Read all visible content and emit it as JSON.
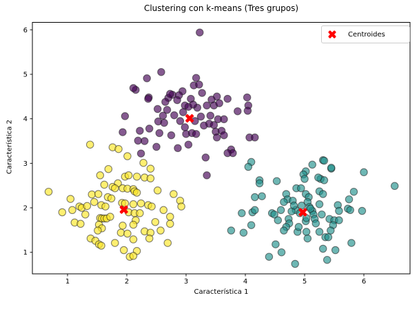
{
  "title": "Clustering con k-means (Tres grupos)",
  "x_axis": {
    "label": "Característica 1",
    "ticks": [
      1,
      2,
      3,
      4,
      5,
      6
    ]
  },
  "y_axis": {
    "label": "Característica 2",
    "ticks": [
      1,
      2,
      3,
      4,
      5,
      6
    ]
  },
  "legend": {
    "label": "Centroides",
    "marker": "X-marker-icon",
    "marker_color": "#ff0000"
  },
  "colors": {
    "cluster_yellow": "#fde725",
    "cluster_purple": "#440154",
    "cluster_teal": "#21918c",
    "centroid": "#ff0000",
    "edge": "#1a1a1a",
    "frame": "#000000"
  },
  "chart_data": {
    "type": "scatter",
    "title": "Clustering con k-means (Tres grupos)",
    "xlabel": "Característica 1",
    "ylabel": "Característica 2",
    "xlim": [
      0.41,
      6.78
    ],
    "ylim": [
      0.51,
      6.16
    ],
    "grid": false,
    "legend_position": "upper right",
    "marker_alpha": 0.65,
    "series": [
      {
        "name": "cluster-yellow",
        "color": "#fde725",
        "marker": "o",
        "points": [
          [
            1.38,
            3.42
          ],
          [
            1.76,
            3.36
          ],
          [
            1.86,
            3.32
          ],
          [
            2.01,
            3.16
          ],
          [
            2.28,
            3.01
          ],
          [
            1.69,
            2.87
          ],
          [
            2.4,
            2.88
          ],
          [
            1.55,
            2.73
          ],
          [
            1.97,
            2.7
          ],
          [
            2.03,
            2.73
          ],
          [
            2.17,
            2.7
          ],
          [
            2.3,
            2.68
          ],
          [
            2.4,
            2.66
          ],
          [
            1.85,
            2.55
          ],
          [
            1.62,
            2.52
          ],
          [
            1.76,
            2.47
          ],
          [
            1.8,
            2.44
          ],
          [
            1.93,
            2.44
          ],
          [
            2.01,
            2.43
          ],
          [
            2.11,
            2.42
          ],
          [
            2.13,
            2.37
          ],
          [
            2.17,
            2.34
          ],
          [
            2.52,
            2.39
          ],
          [
            2.79,
            2.31
          ],
          [
            0.68,
            2.36
          ],
          [
            1.41,
            2.3
          ],
          [
            1.52,
            2.31
          ],
          [
            1.68,
            2.24
          ],
          [
            1.74,
            2.21
          ],
          [
            1.05,
            2.2
          ],
          [
            1.45,
            2.13
          ],
          [
            1.2,
            2.03
          ],
          [
            1.24,
            2.0
          ],
          [
            1.33,
            2.04
          ],
          [
            0.91,
            1.9
          ],
          [
            1.08,
            1.95
          ],
          [
            1.57,
            2.06
          ],
          [
            1.64,
            2.03
          ],
          [
            1.92,
            2.11
          ],
          [
            1.97,
            2.1
          ],
          [
            2.11,
            2.08
          ],
          [
            2.24,
            2.1
          ],
          [
            2.36,
            2.06
          ],
          [
            2.42,
            2.03
          ],
          [
            2.9,
            2.16
          ],
          [
            2.92,
            2.03
          ],
          [
            2.62,
            1.95
          ],
          [
            1.55,
            1.77
          ],
          [
            1.58,
            1.76
          ],
          [
            1.62,
            1.76
          ],
          [
            1.66,
            1.76
          ],
          [
            1.72,
            1.8
          ],
          [
            2.03,
            1.9
          ],
          [
            2.13,
            1.88
          ],
          [
            2.22,
            1.88
          ],
          [
            1.3,
            1.85
          ],
          [
            1.12,
            1.67
          ],
          [
            1.22,
            1.64
          ],
          [
            1.53,
            1.62
          ],
          [
            1.58,
            1.54
          ],
          [
            1.51,
            1.49
          ],
          [
            2.15,
            1.72
          ],
          [
            2.11,
            1.62
          ],
          [
            2.73,
            1.8
          ],
          [
            2.73,
            1.64
          ],
          [
            2.48,
            1.68
          ],
          [
            1.93,
            1.6
          ],
          [
            1.39,
            1.31
          ],
          [
            1.47,
            1.26
          ],
          [
            1.53,
            1.18
          ],
          [
            1.57,
            1.15
          ],
          [
            1.8,
            1.21
          ],
          [
            1.9,
            1.44
          ],
          [
            2.01,
            1.42
          ],
          [
            2.11,
            1.29
          ],
          [
            2.3,
            1.47
          ],
          [
            2.4,
            1.44
          ],
          [
            2.38,
            1.31
          ],
          [
            2.57,
            1.49
          ],
          [
            2.69,
            1.21
          ],
          [
            1.95,
            1.05
          ],
          [
            2.17,
            1.03
          ],
          [
            2.05,
            0.9
          ],
          [
            2.11,
            0.92
          ]
        ]
      },
      {
        "name": "cluster-purple",
        "color": "#440154",
        "marker": "o",
        "points": [
          [
            3.23,
            5.94
          ],
          [
            2.58,
            5.05
          ],
          [
            2.34,
            4.91
          ],
          [
            3.17,
            4.92
          ],
          [
            2.15,
            4.65
          ],
          [
            2.11,
            4.69
          ],
          [
            3.13,
            4.75
          ],
          [
            3.22,
            4.77
          ],
          [
            2.94,
            4.62
          ],
          [
            2.77,
            4.54
          ],
          [
            2.37,
            4.48
          ],
          [
            2.7,
            4.47
          ],
          [
            2.36,
            4.45
          ],
          [
            2.73,
            4.56
          ],
          [
            2.65,
            4.38
          ],
          [
            2.88,
            4.53
          ],
          [
            2.98,
            4.3
          ],
          [
            3.04,
            4.27
          ],
          [
            3.19,
            4.25
          ],
          [
            3.27,
            4.58
          ],
          [
            3.08,
            4.45
          ],
          [
            2.85,
            4.42
          ],
          [
            3.12,
            4.32
          ],
          [
            2.52,
            4.22
          ],
          [
            2.68,
            4.2
          ],
          [
            2.61,
            4.07
          ],
          [
            2.53,
            3.94
          ],
          [
            2.63,
            3.91
          ],
          [
            1.97,
            4.06
          ],
          [
            1.93,
            3.7
          ],
          [
            2.22,
            3.73
          ],
          [
            2.38,
            3.78
          ],
          [
            2.55,
            3.68
          ],
          [
            2.75,
            3.63
          ],
          [
            2.98,
            3.81
          ],
          [
            3.0,
            3.66
          ],
          [
            3.1,
            3.68
          ],
          [
            3.17,
            3.66
          ],
          [
            2.3,
            3.5
          ],
          [
            2.19,
            3.51
          ],
          [
            2.5,
            3.37
          ],
          [
            2.86,
            3.34
          ],
          [
            3.04,
            3.42
          ],
          [
            2.24,
            3.22
          ],
          [
            3.52,
            4.5
          ],
          [
            3.7,
            4.45
          ],
          [
            3.43,
            4.43
          ],
          [
            3.35,
            4.3
          ],
          [
            3.47,
            4.3
          ],
          [
            3.56,
            4.35
          ],
          [
            4.03,
            4.48
          ],
          [
            4.05,
            4.3
          ],
          [
            4.04,
            4.18
          ],
          [
            3.87,
            4.17
          ],
          [
            3.41,
            4.07
          ],
          [
            3.54,
            3.99
          ],
          [
            3.64,
            3.99
          ],
          [
            3.39,
            3.89
          ],
          [
            3.47,
            3.86
          ],
          [
            3.5,
            3.71
          ],
          [
            3.6,
            3.73
          ],
          [
            3.64,
            3.63
          ],
          [
            3.52,
            3.58
          ],
          [
            4.07,
            3.58
          ],
          [
            4.16,
            3.58
          ],
          [
            3.76,
            3.31
          ],
          [
            3.79,
            3.23
          ],
          [
            3.7,
            3.23
          ],
          [
            3.33,
            3.13
          ],
          [
            3.35,
            2.73
          ],
          [
            2.95,
            4.15
          ],
          [
            3.25,
            4.05
          ],
          [
            3.3,
            3.85
          ],
          [
            2.9,
            3.95
          ],
          [
            3.15,
            3.95
          ],
          [
            2.8,
            4.08
          ]
        ]
      },
      {
        "name": "cluster-teal",
        "color": "#21918c",
        "marker": "o",
        "points": [
          [
            4.1,
            3.03
          ],
          [
            5.31,
            3.07
          ],
          [
            5.33,
            3.06
          ],
          [
            5.13,
            2.97
          ],
          [
            5.45,
            2.88
          ],
          [
            5.45,
            2.9
          ],
          [
            5.02,
            2.82
          ],
          [
            4.05,
            2.92
          ],
          [
            6.0,
            2.8
          ],
          [
            4.98,
            2.75
          ],
          [
            5.0,
            2.65
          ],
          [
            5.27,
            2.65
          ],
          [
            5.33,
            2.62
          ],
          [
            4.24,
            2.62
          ],
          [
            4.24,
            2.55
          ],
          [
            5.23,
            2.68
          ],
          [
            4.53,
            2.6
          ],
          [
            6.52,
            2.49
          ],
          [
            4.16,
            2.24
          ],
          [
            4.28,
            2.26
          ],
          [
            4.69,
            2.31
          ],
          [
            4.86,
            2.44
          ],
          [
            4.94,
            2.44
          ],
          [
            4.71,
            2.19
          ],
          [
            4.65,
            2.13
          ],
          [
            4.8,
            2.16
          ],
          [
            5.02,
            2.31
          ],
          [
            5.07,
            2.24
          ],
          [
            5.05,
            2.13
          ],
          [
            5.25,
            2.37
          ],
          [
            5.31,
            2.31
          ],
          [
            5.83,
            2.36
          ],
          [
            5.75,
            2.19
          ],
          [
            5.25,
            2.08
          ],
          [
            5.56,
            2.06
          ],
          [
            3.94,
            1.88
          ],
          [
            4.12,
            1.9
          ],
          [
            4.16,
            1.95
          ],
          [
            4.45,
            1.88
          ],
          [
            4.49,
            1.85
          ],
          [
            5.58,
            1.93
          ],
          [
            5.73,
            1.98
          ],
          [
            5.77,
            1.95
          ],
          [
            5.97,
            1.93
          ],
          [
            5.29,
            1.85
          ],
          [
            4.55,
            1.72
          ],
          [
            4.73,
            1.75
          ],
          [
            4.74,
            1.65
          ],
          [
            4.69,
            1.57
          ],
          [
            4.65,
            1.49
          ],
          [
            4.88,
            1.46
          ],
          [
            4.9,
            1.57
          ],
          [
            5.02,
            1.7
          ],
          [
            5.03,
            1.77
          ],
          [
            5.13,
            1.93
          ],
          [
            5.15,
            1.85
          ],
          [
            5.17,
            1.75
          ],
          [
            5.19,
            1.65
          ],
          [
            5.42,
            1.75
          ],
          [
            5.5,
            1.72
          ],
          [
            5.48,
            1.61
          ],
          [
            5.58,
            1.72
          ],
          [
            5.03,
            1.46
          ],
          [
            5.05,
            1.31
          ],
          [
            5.25,
            1.46
          ],
          [
            5.44,
            1.49
          ],
          [
            5.35,
            1.34
          ],
          [
            5.4,
            1.34
          ],
          [
            3.76,
            1.49
          ],
          [
            3.97,
            1.44
          ],
          [
            4.1,
            1.61
          ],
          [
            5.79,
            1.21
          ],
          [
            4.51,
            1.18
          ],
          [
            5.31,
            1.08
          ],
          [
            5.52,
            1.05
          ],
          [
            4.61,
            1.0
          ],
          [
            4.4,
            0.9
          ],
          [
            5.38,
            0.83
          ],
          [
            4.84,
            0.74
          ],
          [
            4.85,
            1.95
          ],
          [
            4.95,
            2.05
          ],
          [
            5.08,
            2.02
          ],
          [
            4.78,
            1.92
          ],
          [
            4.6,
            1.95
          ],
          [
            4.92,
            1.88
          ],
          [
            5.1,
            1.98
          ],
          [
            4.82,
            2.05
          ]
        ]
      },
      {
        "name": "Centroides",
        "color": "#ff0000",
        "marker": "X",
        "points": [
          [
            1.95,
            1.96
          ],
          [
            3.06,
            4.01
          ],
          [
            4.97,
            1.9
          ]
        ]
      }
    ]
  }
}
